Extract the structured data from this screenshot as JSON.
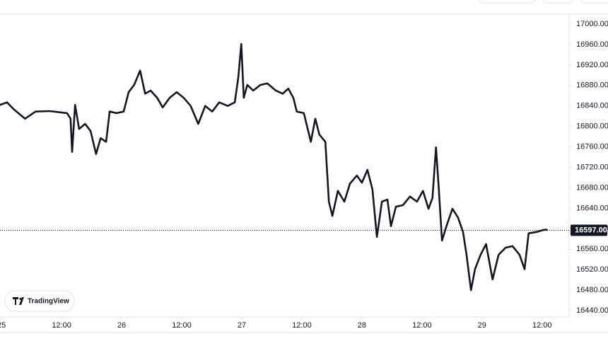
{
  "chart_data": {
    "type": "line",
    "color": "#131722",
    "x": [
      -0.3,
      1.1,
      2.5,
      4.7,
      6.8,
      9.6,
      13.1,
      13.8,
      14.1,
      14.7,
      15.5,
      16.7,
      17.8,
      18.9,
      19.8,
      20.9,
      21.6,
      23.0,
      24.4,
      25.4,
      26.5,
      27.7,
      28.7,
      29.8,
      31.1,
      32.2,
      33.6,
      35.0,
      36.4,
      37.8,
      39.3,
      40.7,
      42.1,
      43.5,
      45.2,
      46.6,
      47.3,
      47.9,
      48.4,
      49.1,
      50.3,
      51.7,
      53.1,
      54.8,
      56.2,
      57.3,
      58.3,
      59.0,
      60.4,
      61.8,
      62.7,
      63.5,
      64.7,
      65.4,
      66.1,
      67.2,
      68.5,
      69.6,
      71.0,
      72.0,
      73.1,
      74.1,
      75.0,
      76.0,
      77.1,
      77.8,
      78.8,
      80.2,
      81.6,
      83.0,
      84.2,
      85.3,
      86.1,
      86.8,
      87.3,
      88.0,
      89.0,
      90.1,
      91.2,
      92.2,
      92.9,
      93.8,
      94.6,
      95.7,
      96.8,
      98.1,
      99.3,
      100.7,
      102.1,
      103.5,
      104.5,
      105.3,
      107.0,
      108.4,
      109.1
    ],
    "values": [
      16842,
      16847,
      16833,
      16815,
      16829,
      16830,
      16826,
      16815,
      16750,
      16842,
      16795,
      16805,
      16791,
      16746,
      16777,
      16770,
      16829,
      16826,
      16829,
      16867,
      16881,
      16909,
      16864,
      16870,
      16856,
      16837,
      16856,
      16867,
      16856,
      16840,
      16805,
      16840,
      16829,
      16847,
      16840,
      16847,
      16895,
      16961,
      16856,
      16881,
      16870,
      16881,
      16884,
      16870,
      16864,
      16874,
      16856,
      16829,
      16826,
      16770,
      16815,
      16784,
      16770,
      16653,
      16625,
      16674,
      16653,
      16688,
      16704,
      16690,
      16715,
      16677,
      16584,
      16653,
      16657,
      16605,
      16643,
      16646,
      16663,
      16653,
      16674,
      16639,
      16660,
      16759,
      16688,
      16577,
      16608,
      16639,
      16622,
      16594,
      16549,
      16480,
      16521,
      16549,
      16570,
      16501,
      16549,
      16563,
      16566,
      16549,
      16521,
      16591,
      16594,
      16598,
      16598
    ],
    "xlim": [
      -0.3,
      113.4
    ],
    "xticks": [
      {
        "value": 0,
        "label": "25"
      },
      {
        "value": 12,
        "label": "12:00"
      },
      {
        "value": 24,
        "label": "26"
      },
      {
        "value": 36,
        "label": "12:00"
      },
      {
        "value": 48,
        "label": "27"
      },
      {
        "value": 60,
        "label": "12:00"
      },
      {
        "value": 72,
        "label": "28"
      },
      {
        "value": 84,
        "label": "12:00"
      },
      {
        "value": 96,
        "label": "29"
      },
      {
        "value": 108,
        "label": "12:00"
      }
    ],
    "ylim": [
      16427.6,
      17019.4
    ],
    "yticks": [
      {
        "value": 16440,
        "label": "16440.00"
      },
      {
        "value": 16480,
        "label": "16480.00"
      },
      {
        "value": 16520,
        "label": "16520.00"
      },
      {
        "value": 16560,
        "label": "16560.00"
      },
      {
        "value": 16600,
        "label": "16600.00"
      },
      {
        "value": 16640,
        "label": "16640.00"
      },
      {
        "value": 16680,
        "label": "16680.00"
      },
      {
        "value": 16720,
        "label": "16720.00"
      },
      {
        "value": 16760,
        "label": "16760.00"
      },
      {
        "value": 16800,
        "label": "16800.00"
      },
      {
        "value": 16840,
        "label": "16840.00"
      },
      {
        "value": 16880,
        "label": "16880.00"
      },
      {
        "value": 16920,
        "label": "16920.00"
      },
      {
        "value": 16960,
        "label": "16960.00"
      },
      {
        "value": 17000,
        "label": "17000.00"
      }
    ],
    "last_price": {
      "value": 16597,
      "label": "16597.00"
    },
    "watermark": "TradingView"
  }
}
